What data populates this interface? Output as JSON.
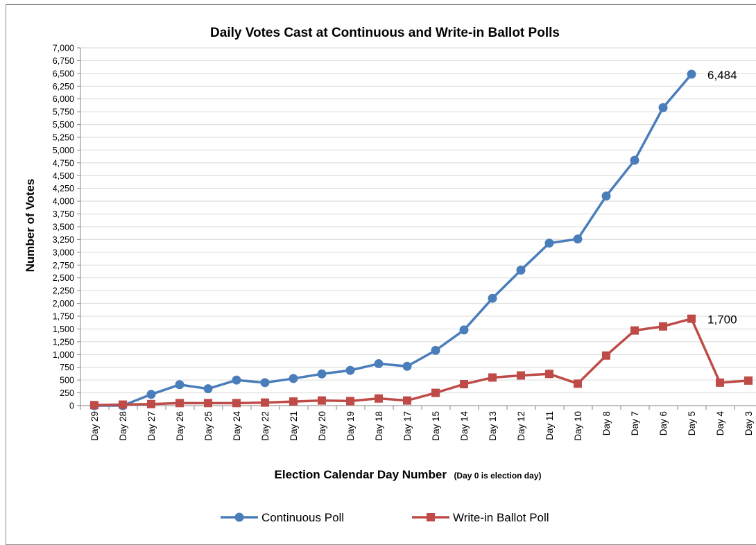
{
  "chart_data": {
    "type": "line",
    "title": "Daily Votes Cast at Continuous and Write-in Ballot Polls",
    "xlabel": "Election Calendar Day Number",
    "xlabel_note": "(Day 0 is election day)",
    "ylabel": "Number of Votes",
    "ylim": [
      0,
      7000
    ],
    "ytick_step": 250,
    "y_tick_labels": [
      "0",
      "250",
      "500",
      "750",
      "1,000",
      "1,250",
      "1,500",
      "1,750",
      "2,000",
      "2,250",
      "2,500",
      "2,750",
      "3,000",
      "3,250",
      "3,500",
      "3,750",
      "4,000",
      "4,250",
      "4,500",
      "4,750",
      "5,000",
      "5,250",
      "5,500",
      "5,750",
      "6,000",
      "6,250",
      "6,500",
      "6,750",
      "7,000"
    ],
    "grid": true,
    "legend_position": "bottom",
    "categories": [
      "Day 29",
      "Day 28",
      "Day 27",
      "Day 26",
      "Day 25",
      "Day 24",
      "Day 22",
      "Day 21",
      "Day 20",
      "Day 19",
      "Day 18",
      "Day 17",
      "Day 15",
      "Day 14",
      "Day 13",
      "Day 12",
      "Day 11",
      "Day 10",
      "Day 8",
      "Day 7",
      "Day 6",
      "Day 5",
      "Day 4",
      "Day 3"
    ],
    "series": [
      {
        "name": "Continuous Poll",
        "color": "#4a7ebb",
        "marker": "circle",
        "values": [
          0,
          0,
          220,
          410,
          330,
          500,
          450,
          530,
          620,
          690,
          820,
          770,
          1080,
          1480,
          2100,
          2650,
          3180,
          3260,
          4100,
          4800,
          5830,
          6484,
          null,
          null
        ]
      },
      {
        "name": "Write-in Ballot Poll",
        "color": "#be4b48",
        "marker": "square",
        "values": [
          10,
          20,
          30,
          50,
          50,
          50,
          60,
          80,
          100,
          90,
          140,
          100,
          250,
          420,
          550,
          590,
          620,
          430,
          980,
          1470,
          1550,
          1700,
          450,
          490
        ]
      }
    ],
    "annotations": [
      {
        "text": "6,484",
        "series": "Continuous Poll",
        "category": "Day 5"
      },
      {
        "text": "1,700",
        "series": "Write-in Ballot Poll",
        "category": "Day 5"
      }
    ]
  }
}
